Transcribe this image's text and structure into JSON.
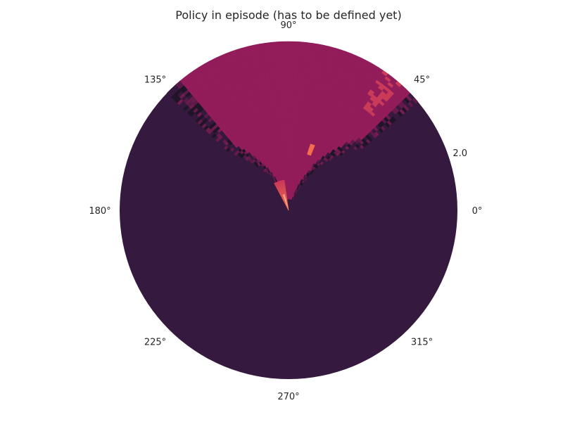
{
  "chart_data": {
    "type": "heatmap",
    "projection": "polar",
    "title": "Policy in episode (has to be defined yet)",
    "theta_ticks": [
      "0°",
      "45°",
      "90°",
      "135°",
      "180°",
      "225°",
      "270°",
      "315°"
    ],
    "r_ticks": [
      "2.0"
    ],
    "rlim": [
      0,
      2.0
    ],
    "grid": false,
    "colors": {
      "low": "#36193e",
      "high": "#931c5a",
      "hot": "#f36e4c",
      "peak": "#f5b99c",
      "dark": "#1f1527",
      "accent": "#c93b59"
    },
    "regions": [
      {
        "name": "low",
        "theta_range_deg": [
          -180,
          180
        ],
        "r_range": [
          0,
          2.0
        ],
        "value": "low"
      },
      {
        "name": "upper wedge",
        "theta_range_deg": [
          45,
          130
        ],
        "r_range": [
          0.1,
          2.0
        ],
        "value": "high"
      },
      {
        "name": "center spike",
        "theta_range_deg": [
          100,
          115
        ],
        "r_range": [
          0,
          0.35
        ],
        "value": "hot"
      }
    ]
  }
}
